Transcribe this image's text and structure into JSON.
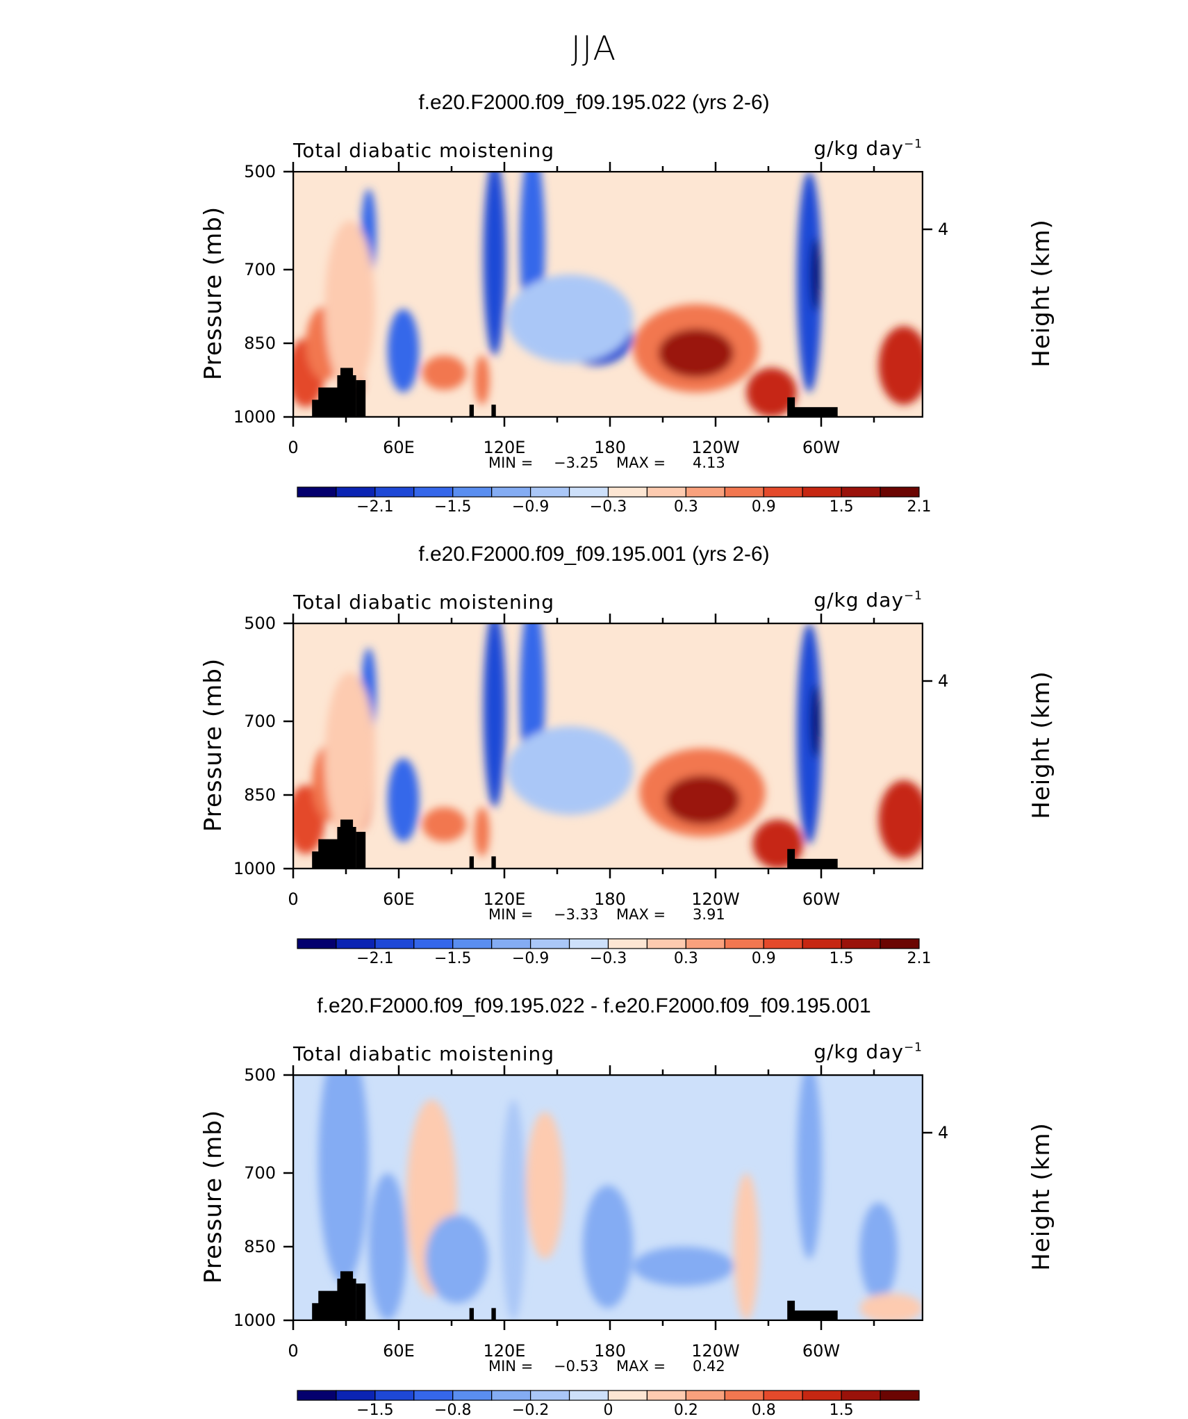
{
  "page_title": "JJA",
  "colors": {
    "palette": [
      "#04006e",
      "#0b24b3",
      "#1e48d6",
      "#3567ea",
      "#5a8ef0",
      "#84acf3",
      "#aac7f7",
      "#cde0fa",
      "#fde6d3",
      "#fdcbb0",
      "#f9a17d",
      "#f27750",
      "#e44a2b",
      "#c62712",
      "#9a120a",
      "#6b0502"
    ],
    "topography": "#000000"
  },
  "chart_data": [
    {
      "type": "heatmap",
      "title": "f.e20.F2000.f09_f09.195.022 (yrs 2-6)",
      "left_label": "Total diabatic moistening",
      "units": "g/kg day",
      "units_exp": "−1",
      "ylabel": "Pressure (mb)",
      "ylabel_right": "Height (km)",
      "xticks": [
        "0",
        "60E",
        "120E",
        "180",
        "120W",
        "60W"
      ],
      "yticks": [
        "500",
        "700",
        "850",
        "1000"
      ],
      "right_ticks": [
        "4"
      ],
      "ylim": [
        1000,
        500
      ],
      "min_label": "MIN =",
      "min_value": "−3.25",
      "max_label": "MAX =",
      "max_value": "4.13",
      "colorbar_labels": [
        "−2.1",
        "−1.5",
        "−0.9",
        "−0.3",
        "0.3",
        "0.9",
        "1.5",
        "2.1"
      ]
    },
    {
      "type": "heatmap",
      "title": "f.e20.F2000.f09_f09.195.001 (yrs 2-6)",
      "left_label": "Total diabatic moistening",
      "units": "g/kg day",
      "units_exp": "−1",
      "ylabel": "Pressure (mb)",
      "ylabel_right": "Height (km)",
      "xticks": [
        "0",
        "60E",
        "120E",
        "180",
        "120W",
        "60W"
      ],
      "yticks": [
        "500",
        "700",
        "850",
        "1000"
      ],
      "right_ticks": [
        "4"
      ],
      "ylim": [
        1000,
        500
      ],
      "min_label": "MIN =",
      "min_value": "−3.33",
      "max_label": "MAX =",
      "max_value": "3.91",
      "colorbar_labels": [
        "−2.1",
        "−1.5",
        "−0.9",
        "−0.3",
        "0.3",
        "0.9",
        "1.5",
        "2.1"
      ]
    },
    {
      "type": "heatmap",
      "title": "f.e20.F2000.f09_f09.195.022 - f.e20.F2000.f09_f09.195.001",
      "left_label": "Total diabatic moistening",
      "units": "g/kg day",
      "units_exp": "−1",
      "ylabel": "Pressure (mb)",
      "ylabel_right": "Height (km)",
      "xticks": [
        "0",
        "60E",
        "120E",
        "180",
        "120W",
        "60W"
      ],
      "yticks": [
        "500",
        "700",
        "850",
        "1000"
      ],
      "right_ticks": [
        "4"
      ],
      "ylim": [
        1000,
        500
      ],
      "min_label": "MIN =",
      "min_value": "−0.53",
      "max_label": "MAX =",
      "max_value": "0.42",
      "colorbar_labels": [
        "−1.5",
        "−0.8",
        "−0.2",
        "0",
        "0.2",
        "0.8",
        "1.5"
      ]
    }
  ]
}
